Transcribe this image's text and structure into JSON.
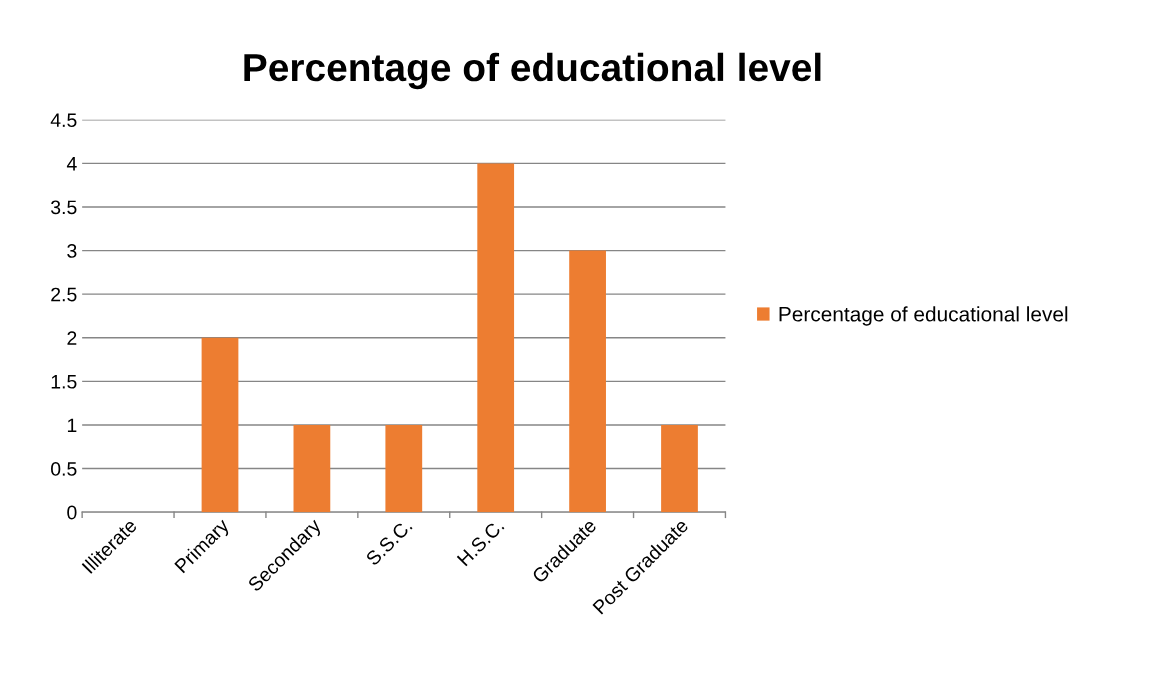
{
  "chart_data": {
    "type": "bar",
    "title": "Percentage of educational level",
    "categories": [
      "Illiterate",
      "Primary",
      "Secondary",
      "S.S.C.",
      "H.S.C.",
      "Graduate",
      "Post Graduate"
    ],
    "series": [
      {
        "name": "Percentage of educational level",
        "color": "#ed7d31",
        "values": [
          0,
          2,
          1,
          1,
          4,
          3,
          1
        ]
      }
    ],
    "ylim": [
      0,
      4.5
    ],
    "yticks": [
      0,
      0.5,
      1,
      1.5,
      2,
      2.5,
      3,
      3.5,
      4,
      4.5
    ],
    "grid": "y",
    "legend": "right"
  }
}
